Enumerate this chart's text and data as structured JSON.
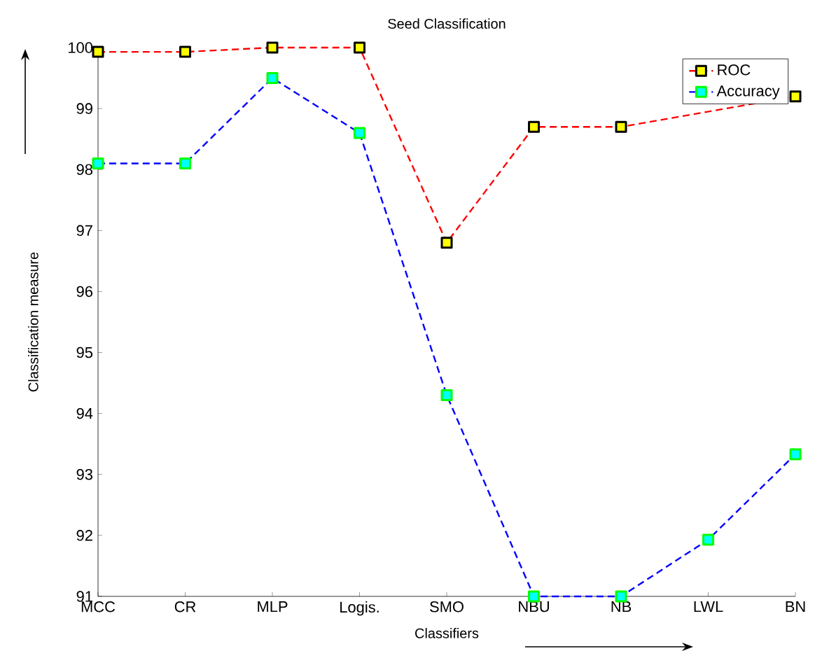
{
  "chart_data": {
    "type": "line",
    "title": "Seed Classification",
    "xlabel": "Classifiers",
    "ylabel": "Classification measure",
    "categories": [
      "MCC",
      "CR",
      "MLP",
      "Logis.",
      "SMO",
      "NBU",
      "NB",
      "LWL",
      "BN"
    ],
    "series": [
      {
        "name": "ROC",
        "color": "#ff0000",
        "values": [
          99.93,
          99.93,
          100,
          100,
          96.8,
          98.7,
          98.7,
          null,
          99.2
        ]
      },
      {
        "name": "Accuracy",
        "color": "#0000ff",
        "values": [
          98.1,
          98.1,
          99.5,
          98.6,
          94.3,
          91,
          91,
          91.93,
          93.33
        ]
      }
    ],
    "ylim": [
      91,
      100
    ],
    "yticks": [
      91,
      92,
      93,
      94,
      95,
      96,
      97,
      98,
      99,
      100
    ],
    "grid": false,
    "legend": "top right",
    "marker": "square",
    "line_style": "dashed"
  }
}
